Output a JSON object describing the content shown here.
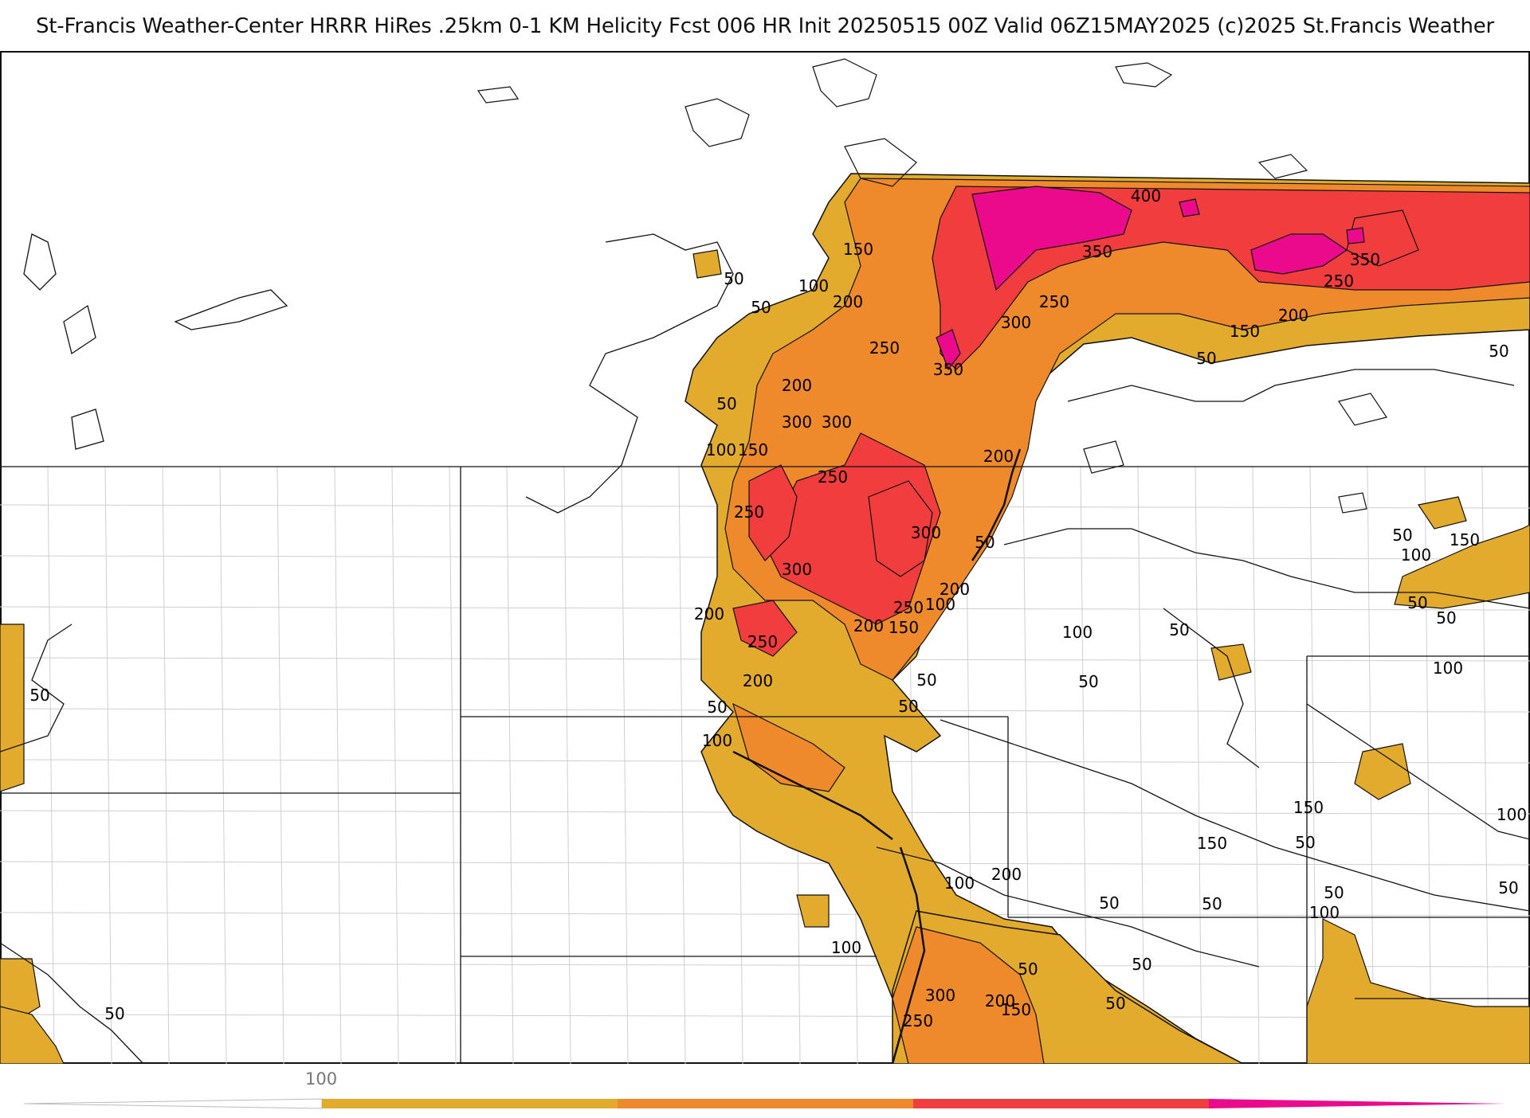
{
  "header": {
    "title": "St-Francis Weather-Center HRRR HiRes .25km 0-1 KM Helicity Fcst 006 HR Init 20250515 00Z  Valid 06Z15MAY2025     (c)2025 St.Francis Weather"
  },
  "map": {
    "field": "0-1 KM Helicity",
    "colors": {
      "band_100_150": "#e3ab2d",
      "band_150_250": "#ef8a2c",
      "band_250_350": "#f23d3f",
      "band_350_plus": "#ec0a8c",
      "state_border": "#111111",
      "county_border": "#c8c8c8",
      "contour_line": "#111111"
    },
    "contour_labels": [
      "400",
      "350",
      "350",
      "350",
      "300",
      "300",
      "250",
      "250",
      "150",
      "100",
      "200",
      "50",
      "50",
      "250",
      "200",
      "150",
      "50",
      "200",
      "300",
      "100",
      "150",
      "50",
      "250",
      "200",
      "250",
      "300",
      "50",
      "300",
      "200",
      "200",
      "100",
      "250",
      "150",
      "200",
      "250",
      "50",
      "50",
      "100",
      "200",
      "100",
      "50",
      "50",
      "50",
      "50",
      "150",
      "100",
      "50",
      "50",
      "100",
      "150",
      "150",
      "200",
      "100",
      "50",
      "50",
      "100",
      "50",
      "50",
      "50",
      "50",
      "50",
      "50",
      "100",
      "50",
      "150",
      "50",
      "200",
      "300",
      "250",
      "50",
      "100"
    ]
  },
  "colorbar": {
    "tick_label": "100",
    "segments": [
      "#e3ab2d",
      "#ef8a2c",
      "#f23d3f",
      "#ec0a8c"
    ]
  }
}
